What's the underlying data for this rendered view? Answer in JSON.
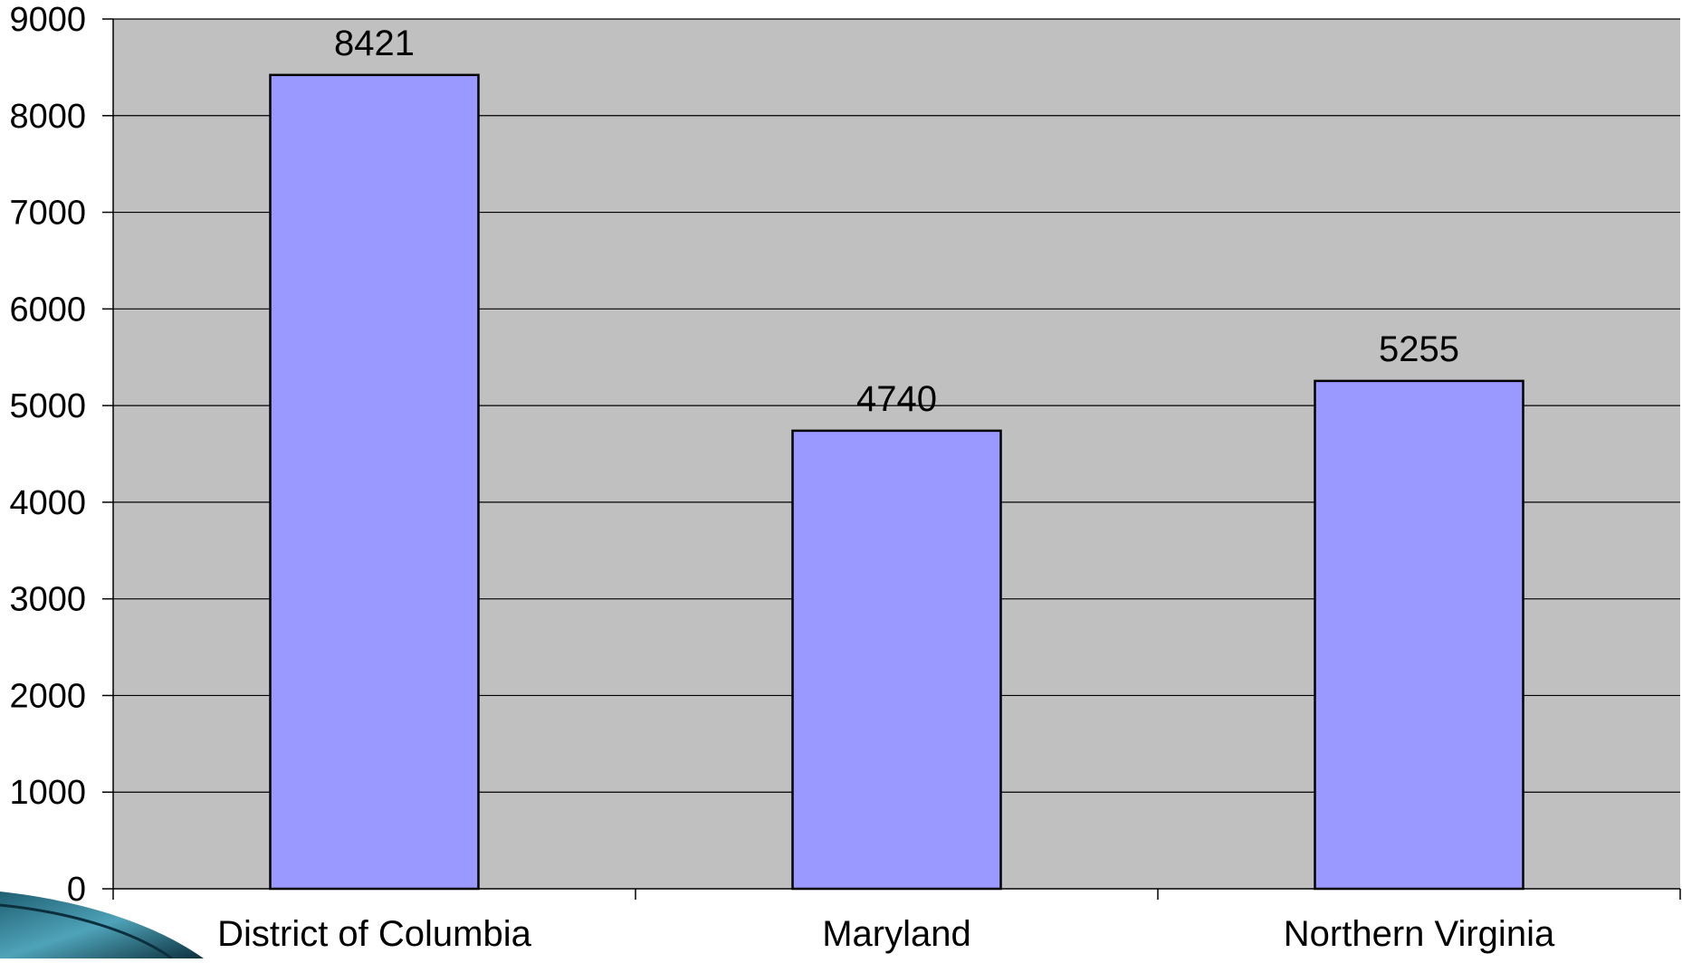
{
  "chart_data": {
    "type": "bar",
    "title": "",
    "xlabel": "",
    "ylabel": "",
    "categories": [
      "District of Columbia",
      "Maryland",
      "Northern Virginia"
    ],
    "values": [
      8421,
      4740,
      5255
    ],
    "data_labels": [
      "8421",
      "4740",
      "5255"
    ],
    "ylim": [
      0,
      9000
    ],
    "y_ticks": [
      0,
      1000,
      2000,
      3000,
      4000,
      5000,
      6000,
      7000,
      8000,
      9000
    ],
    "y_tick_labels": [
      "0",
      "1000",
      "2000",
      "3000",
      "4000",
      "5000",
      "6000",
      "7000",
      "8000",
      "9000"
    ],
    "grid": true,
    "legend": "none",
    "colors": {
      "bar_fill": "#9999ff",
      "bar_stroke": "#000000",
      "plot_background": "#c0c0c0",
      "gridline": "#000000"
    }
  },
  "decor": {
    "corner_swoosh": "teal-swoosh-icon"
  }
}
